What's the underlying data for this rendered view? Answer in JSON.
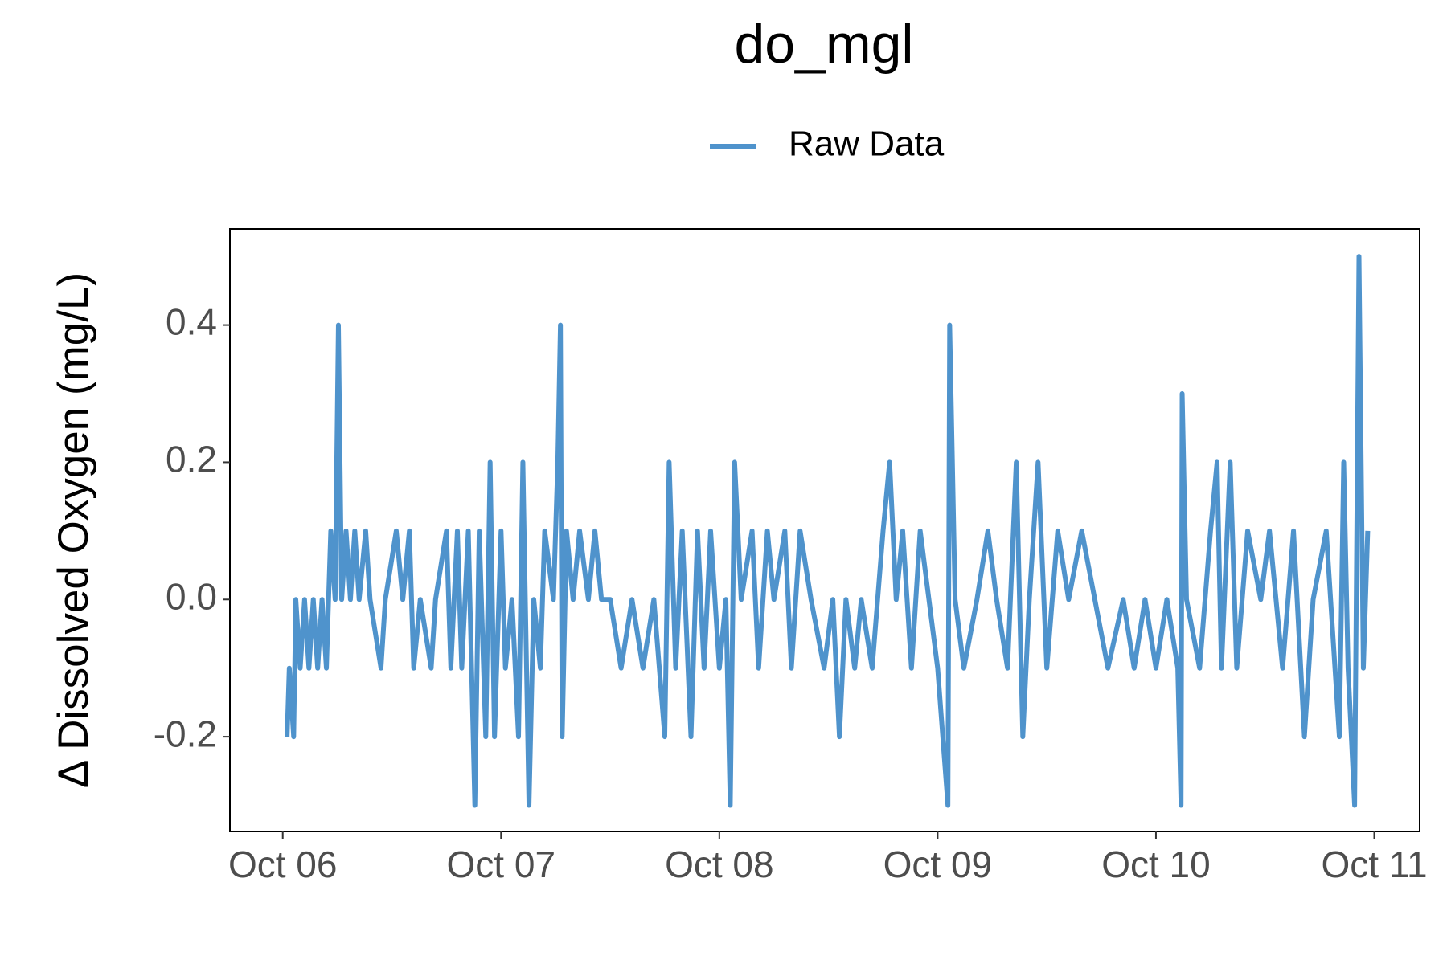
{
  "chart_data": {
    "type": "line",
    "title": "do_mgl",
    "y_label": "Δ Dissolved Oxygen (mg/L)",
    "legend_position": "top",
    "grid": false,
    "xlim": [
      -0.242,
      5.208
    ],
    "xticks": [
      {
        "value": 0,
        "label": "Oct 06"
      },
      {
        "value": 1,
        "label": "Oct 07"
      },
      {
        "value": 2,
        "label": "Oct 08"
      },
      {
        "value": 3,
        "label": "Oct 09"
      },
      {
        "value": 4,
        "label": "Oct 10"
      },
      {
        "value": 5,
        "label": "Oct 11"
      }
    ],
    "ylim": [
      -0.338,
      0.54
    ],
    "yticks": [
      -0.2,
      {
        "value": 0,
        "label": "0.0"
      },
      0.2,
      0.4
    ],
    "x": [
      0.02,
      0.03,
      0.05,
      0.06,
      0.08,
      0.1,
      0.12,
      0.14,
      0.16,
      0.18,
      0.2,
      0.22,
      0.24,
      0.255,
      0.27,
      0.29,
      0.31,
      0.33,
      0.35,
      0.38,
      0.4,
      0.45,
      0.47,
      0.52,
      0.55,
      0.58,
      0.6,
      0.63,
      0.68,
      0.7,
      0.75,
      0.77,
      0.8,
      0.82,
      0.85,
      0.88,
      0.9,
      0.93,
      0.95,
      0.97,
      1.0,
      1.02,
      1.05,
      1.08,
      1.1,
      1.128,
      1.15,
      1.18,
      1.2,
      1.24,
      1.26,
      1.272,
      1.28,
      1.3,
      1.33,
      1.36,
      1.4,
      1.43,
      1.46,
      1.5,
      1.55,
      1.6,
      1.65,
      1.7,
      1.75,
      1.77,
      1.8,
      1.83,
      1.87,
      1.9,
      1.93,
      1.96,
      2.0,
      2.03,
      2.05,
      2.07,
      2.1,
      2.15,
      2.18,
      2.22,
      2.25,
      2.3,
      2.33,
      2.37,
      2.42,
      2.48,
      2.52,
      2.55,
      2.58,
      2.62,
      2.65,
      2.7,
      2.75,
      2.78,
      2.81,
      2.84,
      2.88,
      2.92,
      2.96,
      3.0,
      3.047,
      3.055,
      3.08,
      3.12,
      3.18,
      3.23,
      3.27,
      3.32,
      3.36,
      3.39,
      3.42,
      3.46,
      3.5,
      3.55,
      3.6,
      3.66,
      3.72,
      3.78,
      3.85,
      3.9,
      3.95,
      4.0,
      4.05,
      4.1,
      4.115,
      4.12,
      4.14,
      4.2,
      4.25,
      4.28,
      4.3,
      4.34,
      4.37,
      4.42,
      4.48,
      4.52,
      4.58,
      4.63,
      4.68,
      4.72,
      4.78,
      4.84,
      4.86,
      4.88,
      4.91,
      4.93,
      4.95,
      4.97
    ],
    "series": [
      {
        "name": "Raw Data",
        "color": "#4f93cc",
        "values": [
          -0.2,
          -0.1,
          -0.2,
          0,
          -0.1,
          0,
          -0.1,
          0,
          -0.1,
          0,
          -0.1,
          0.1,
          0,
          0.4,
          0,
          0.1,
          0,
          0.1,
          0,
          0.1,
          0,
          -0.1,
          0,
          0.1,
          0,
          0.1,
          -0.1,
          0,
          -0.1,
          0,
          0.1,
          -0.1,
          0.1,
          -0.1,
          0.1,
          -0.3,
          0.1,
          -0.2,
          0.2,
          -0.2,
          0.1,
          -0.1,
          0,
          -0.2,
          0.2,
          -0.3,
          0,
          -0.1,
          0.1,
          0,
          0.2,
          0.4,
          -0.2,
          0.1,
          0,
          0.1,
          0,
          0.1,
          0,
          0,
          -0.1,
          0,
          -0.1,
          0,
          -0.2,
          0.2,
          -0.1,
          0.1,
          -0.2,
          0.1,
          -0.1,
          0.1,
          -0.1,
          0,
          -0.3,
          0.2,
          0,
          0.1,
          -0.1,
          0.1,
          0,
          0.1,
          -0.1,
          0.1,
          0,
          -0.1,
          0,
          -0.2,
          0,
          -0.1,
          0,
          -0.1,
          0.1,
          0.2,
          0,
          0.1,
          -0.1,
          0.1,
          0,
          -0.1,
          -0.3,
          0.4,
          0,
          -0.1,
          0,
          0.1,
          0,
          -0.1,
          0.2,
          -0.2,
          0,
          0.2,
          -0.1,
          0.1,
          0,
          0.1,
          0,
          -0.1,
          0,
          -0.1,
          0,
          -0.1,
          0,
          -0.1,
          -0.3,
          0.3,
          0,
          -0.1,
          0.1,
          0.2,
          -0.1,
          0.2,
          -0.1,
          0.1,
          0,
          0.1,
          -0.1,
          0.1,
          -0.2,
          0,
          0.1,
          -0.2,
          0.2,
          -0.1,
          -0.3,
          0.5,
          -0.1,
          0.1
        ]
      }
    ]
  }
}
